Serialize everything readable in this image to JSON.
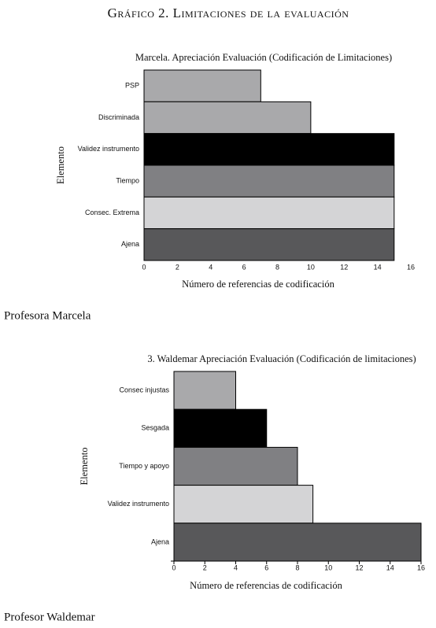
{
  "header": {
    "title": "Gráfico 2. Limitaciones de la evaluación"
  },
  "chart_data": [
    {
      "type": "bar",
      "orientation": "horizontal",
      "title": "Marcela. Apreciación Evaluación (Codificación de Limitaciones)",
      "categories": [
        "PSP",
        "Discriminada",
        "Validez instrumento",
        "Tiempo",
        "Consec. Extrema",
        "Ajena"
      ],
      "values": [
        7,
        10,
        15,
        15,
        15,
        15
      ],
      "colors": [
        "#a9a9ab",
        "#a9a9ab",
        "#000000",
        "#808083",
        "#d4d4d6",
        "#58585a"
      ],
      "xlim": [
        0,
        16
      ],
      "xticks": [
        0,
        2,
        4,
        6,
        8,
        10,
        12,
        14,
        16
      ],
      "xlabel": "Número de referencias de codificación",
      "ylabel": "Elemento"
    },
    {
      "type": "bar",
      "orientation": "horizontal",
      "title": "3. Waldemar Apreciación Evaluación (Codificación de limitaciones)",
      "categories": [
        "Consec injustas",
        "Sesgada",
        "Tiempo y apoyo",
        "Validez instrumento",
        "Ajena"
      ],
      "values": [
        4,
        6,
        8,
        9,
        16
      ],
      "colors": [
        "#a9a9ab",
        "#000000",
        "#808083",
        "#d4d4d6",
        "#58585a"
      ],
      "xlim": [
        0,
        16
      ],
      "xticks": [
        0,
        2,
        4,
        6,
        8,
        10,
        12,
        14,
        16
      ],
      "xlabel": "Número de referencias de codificación",
      "ylabel": "Elemento"
    }
  ],
  "captions": [
    "Profesora Marcela",
    "Profesor Waldemar"
  ]
}
